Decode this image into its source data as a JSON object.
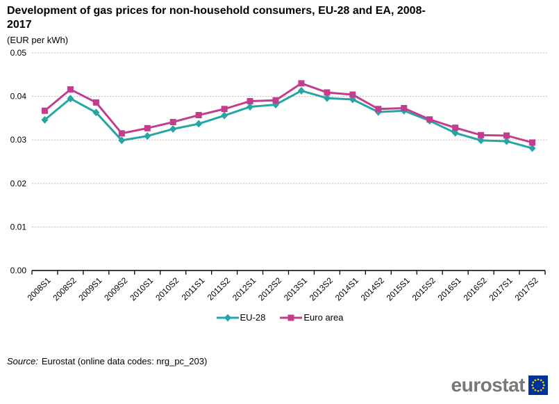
{
  "title": {
    "line1": "Development of gas prices for non-household consumers, EU-28 and EA, 2008-",
    "line2": "2017",
    "subtitle": "(EUR per kWh)"
  },
  "chart_data": {
    "type": "line",
    "title": "Development of gas prices for non-household consumers, EU-28 and EA, 2008-2017",
    "unit": "EUR per kWh",
    "x": [
      "2008S1",
      "2008S2",
      "2009S1",
      "2009S2",
      "2010S1",
      "2010S2",
      "2011S1",
      "2011S2",
      "2012S1",
      "2012S2",
      "2013S1",
      "2013S2",
      "2014S1",
      "2014S2",
      "2015S1",
      "2015S2",
      "2016S1",
      "2016S2",
      "2017S1",
      "2017S2"
    ],
    "series": [
      {
        "name": "EU-28",
        "marker": "diamond",
        "color": "#26A5A5",
        "values": [
          0.0346,
          0.0395,
          0.0363,
          0.0299,
          0.0309,
          0.0325,
          0.0337,
          0.0356,
          0.0376,
          0.0381,
          0.0413,
          0.0396,
          0.0393,
          0.0364,
          0.0367,
          0.0344,
          0.0316,
          0.0299,
          0.0297,
          0.0281
        ]
      },
      {
        "name": "Euro area",
        "marker": "square",
        "color": "#C33D8F",
        "values": [
          0.0367,
          0.0416,
          0.0386,
          0.0315,
          0.0327,
          0.0341,
          0.0357,
          0.0371,
          0.0389,
          0.0391,
          0.043,
          0.0409,
          0.0404,
          0.0371,
          0.0373,
          0.0347,
          0.0328,
          0.0311,
          0.031,
          0.0294
        ]
      }
    ],
    "ylim": [
      0,
      0.05
    ],
    "yticks": [
      0,
      0.01,
      0.02,
      0.03,
      0.04,
      0.05
    ],
    "ytick_labels": [
      "0.00",
      "0.01",
      "0.02",
      "0.03",
      "0.04",
      "0.05"
    ],
    "grid": "horizontal-dashed",
    "legend_position": "bottom-center",
    "colors": {
      "gridline": "#bdbdbd",
      "axis": "#000000",
      "text": "#000000"
    }
  },
  "source": {
    "prefix": "Source:",
    "text": "Eurostat (online data codes: nrg_pc_203)"
  },
  "logo": {
    "text": "eurostat",
    "flag_blue": "#003399",
    "star_yellow": "#FFCC00"
  }
}
